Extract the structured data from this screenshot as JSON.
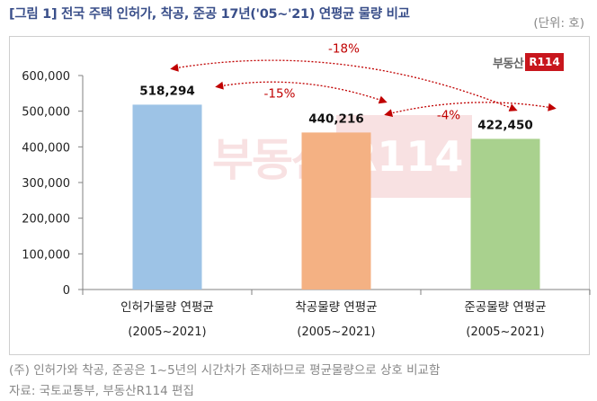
{
  "header": {
    "title": "[그림 1] 전국 주택 인허가, 착공, 준공 17년('05~'21) 연평균 물량 비교",
    "unit": "(단위: 호)"
  },
  "brand": {
    "logo_text": "부동산",
    "logo_box": "R114",
    "accent_color": "#c8161d"
  },
  "chart_data": {
    "type": "bar",
    "categories": [
      "인허가물량 연평균",
      "착공물량 연평균",
      "준공물량 연평균"
    ],
    "category_periods": [
      "(2005~2021)",
      "(2005~2021)",
      "(2005~2021)"
    ],
    "values": [
      518294,
      440216,
      422450
    ],
    "value_labels": [
      "518,294",
      "440,216",
      "422,450"
    ],
    "colors": [
      "#9dc3e6",
      "#f4b183",
      "#a9d18e"
    ],
    "ylim": [
      0,
      600000
    ],
    "yticks": [
      0,
      100000,
      200000,
      300000,
      400000,
      500000,
      600000
    ],
    "ytick_labels": [
      "0",
      "100,000",
      "200,000",
      "300,000",
      "400,000",
      "500,000",
      "600,000"
    ],
    "grid": false,
    "annotations": [
      {
        "from": 0,
        "to": 1,
        "label": "-15%"
      },
      {
        "from": 1,
        "to": 2,
        "label": "-4%"
      },
      {
        "from": 0,
        "to": 2,
        "label": "-18%"
      }
    ],
    "annotation_color": "#c00000"
  },
  "footer": {
    "note": "(주) 인허가와 착공, 준공은 1~5년의 시간차가 존재하므로 평균물량으로 상호 비교함",
    "source": "자료: 국토교통부, 부동산R114 편집"
  }
}
